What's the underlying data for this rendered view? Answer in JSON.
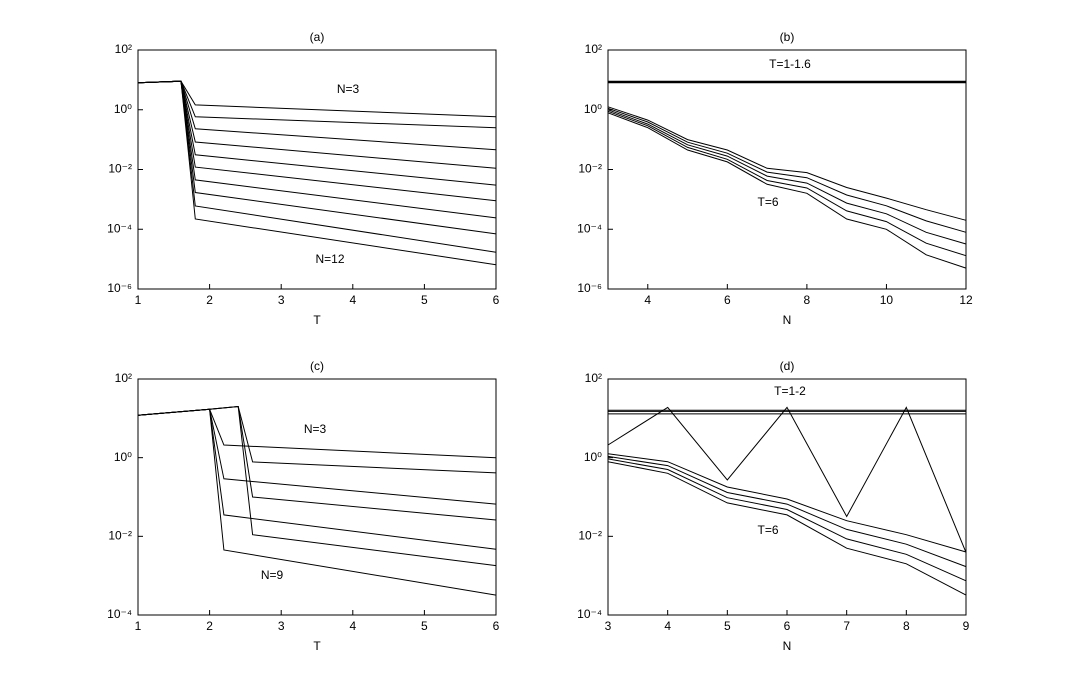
{
  "chart_data": [
    {
      "type": "line",
      "title": "(a)",
      "xlabel": "T",
      "yscale": "log",
      "color": "#000000",
      "xlim": [
        1,
        6
      ],
      "xticks": [
        1,
        2,
        3,
        4,
        5,
        6
      ],
      "ylim": [
        1e-06,
        100
      ],
      "yticks": [
        {
          "value": 1e-06,
          "label": "10⁻⁶"
        },
        {
          "value": 0.0001,
          "label": "10⁻⁴"
        },
        {
          "value": 0.01,
          "label": "10⁻²"
        },
        {
          "value": 1,
          "label": "10⁰"
        },
        {
          "value": 100,
          "label": "10²"
        }
      ],
      "annotations": [
        "N=3",
        "N=12"
      ],
      "x": [
        1,
        1.6,
        1.8,
        6
      ],
      "series": [
        {
          "values": [
            8,
            9,
            1.45,
            0.58
          ]
        },
        {
          "values": [
            8,
            9,
            0.58,
            0.25
          ]
        },
        {
          "values": [
            8,
            9,
            0.23,
            0.046
          ]
        },
        {
          "values": [
            8,
            9,
            0.083,
            0.011
          ]
        },
        {
          "values": [
            8,
            9,
            0.031,
            0.003
          ]
        },
        {
          "values": [
            8,
            9,
            0.012,
            0.0009
          ]
        },
        {
          "values": [
            8,
            9,
            0.0045,
            0.00024
          ]
        },
        {
          "values": [
            8,
            9,
            0.0017,
            7e-05
          ]
        },
        {
          "values": [
            8,
            9,
            0.0006,
            1.7e-05
          ]
        },
        {
          "values": [
            8,
            9,
            0.00022,
            6.5e-06
          ]
        }
      ]
    },
    {
      "type": "line",
      "title": "(b)",
      "xlabel": "N",
      "yscale": "log",
      "color": "#000000",
      "xlim": [
        3,
        12
      ],
      "xticks": [
        4,
        6,
        8,
        10,
        12
      ],
      "ylim": [
        1e-06,
        100
      ],
      "yticks": [
        {
          "value": 1e-06,
          "label": "10⁻⁶"
        },
        {
          "value": 0.0001,
          "label": "10⁻⁴"
        },
        {
          "value": 0.01,
          "label": "10⁻²"
        },
        {
          "value": 1,
          "label": "10⁰"
        },
        {
          "value": 100,
          "label": "10²"
        }
      ],
      "annotations": [
        "T=1-1.6",
        "T=6"
      ],
      "x": [
        3,
        4,
        5,
        6,
        7,
        8,
        9,
        10,
        11,
        12
      ],
      "series": [
        {
          "values": [
            8,
            8,
            8,
            8,
            8,
            8,
            8,
            8,
            8,
            8
          ]
        },
        {
          "values": [
            8.5,
            8.5,
            8.5,
            8.5,
            8.5,
            8.5,
            8.5,
            8.5,
            8.5,
            8.5
          ]
        },
        {
          "values": [
            9,
            9,
            9,
            9,
            9,
            9,
            9,
            9,
            9,
            9
          ]
        },
        {
          "values": [
            1.26,
            0.45,
            0.1,
            0.045,
            0.011,
            0.0079,
            0.0025,
            0.0011,
            0.00045,
            0.0002
          ]
        },
        {
          "values": [
            1.12,
            0.39,
            0.082,
            0.035,
            0.0082,
            0.0053,
            0.0014,
            0.00061,
            0.00019,
            7.9e-05
          ]
        },
        {
          "values": [
            1,
            0.33,
            0.067,
            0.028,
            0.006,
            0.0035,
            0.00075,
            0.00033,
            7.9e-05,
            3.2e-05
          ]
        },
        {
          "values": [
            0.89,
            0.29,
            0.055,
            0.022,
            0.0043,
            0.0024,
            0.00041,
            0.00018,
            3.4e-05,
            1.3e-05
          ]
        },
        {
          "values": [
            0.79,
            0.25,
            0.045,
            0.018,
            0.0032,
            0.0016,
            0.00022,
            0.0001,
            1.4e-05,
            5e-06
          ]
        }
      ]
    },
    {
      "type": "line",
      "title": "(c)",
      "xlabel": "T",
      "yscale": "log",
      "color": "#000000",
      "xlim": [
        1,
        6
      ],
      "xticks": [
        1,
        2,
        3,
        4,
        5,
        6
      ],
      "ylim": [
        0.0001,
        100
      ],
      "yticks": [
        {
          "value": 0.0001,
          "label": "10⁻⁴"
        },
        {
          "value": 0.01,
          "label": "10⁻²"
        },
        {
          "value": 1,
          "label": "10⁰"
        },
        {
          "value": 100,
          "label": "10²"
        }
      ],
      "annotations": [
        "N=3",
        "N=9"
      ],
      "series": [
        {
          "x": [
            1,
            2,
            2.2,
            6
          ],
          "values": [
            12,
            17,
            2.1,
            1.0
          ]
        },
        {
          "x": [
            1,
            2,
            2.4,
            2.6,
            6
          ],
          "values": [
            12,
            17,
            20,
            0.78,
            0.41
          ]
        },
        {
          "x": [
            1,
            2,
            2.2,
            6
          ],
          "values": [
            12,
            17,
            0.29,
            0.066
          ]
        },
        {
          "x": [
            1,
            2,
            2.4,
            2.6,
            6
          ],
          "values": [
            12,
            17,
            20,
            0.1,
            0.026
          ]
        },
        {
          "x": [
            1,
            2,
            2.2,
            6
          ],
          "values": [
            12,
            17,
            0.035,
            0.0047
          ]
        },
        {
          "x": [
            1,
            2,
            2.4,
            2.6,
            6
          ],
          "values": [
            12,
            17,
            20,
            0.011,
            0.0018
          ]
        },
        {
          "x": [
            1,
            2,
            2.2,
            6
          ],
          "values": [
            12,
            17,
            0.0045,
            0.00032
          ]
        }
      ]
    },
    {
      "type": "line",
      "title": "(d)",
      "xlabel": "N",
      "yscale": "log",
      "color": "#000000",
      "xlim": [
        3,
        9
      ],
      "xticks": [
        3,
        4,
        5,
        6,
        7,
        8,
        9
      ],
      "ylim": [
        0.0001,
        100
      ],
      "yticks": [
        {
          "value": 0.0001,
          "label": "10⁻⁴"
        },
        {
          "value": 0.01,
          "label": "10⁻²"
        },
        {
          "value": 1,
          "label": "10⁰"
        },
        {
          "value": 100,
          "label": "10²"
        }
      ],
      "annotations": [
        "T=1-2",
        "T=6"
      ],
      "x": [
        3,
        4,
        5,
        6,
        7,
        8,
        9
      ],
      "series": [
        {
          "values": [
            13,
            13,
            13,
            13,
            13,
            13,
            13
          ]
        },
        {
          "values": [
            15,
            15,
            15,
            15,
            15,
            15,
            15
          ]
        },
        {
          "values": [
            16,
            16,
            16,
            16,
            16,
            16,
            16
          ]
        },
        {
          "values": [
            2.1,
            19,
            0.27,
            19,
            0.032,
            19,
            0.0039
          ]
        },
        {
          "values": [
            1.26,
            0.79,
            0.18,
            0.089,
            0.025,
            0.011,
            0.004
          ]
        },
        {
          "values": [
            1.08,
            0.63,
            0.13,
            0.066,
            0.015,
            0.0063,
            0.0017
          ]
        },
        {
          "values": [
            0.93,
            0.5,
            0.096,
            0.048,
            0.0086,
            0.0035,
            0.00074
          ]
        },
        {
          "values": [
            0.79,
            0.4,
            0.071,
            0.035,
            0.005,
            0.002,
            0.00032
          ]
        }
      ]
    }
  ]
}
